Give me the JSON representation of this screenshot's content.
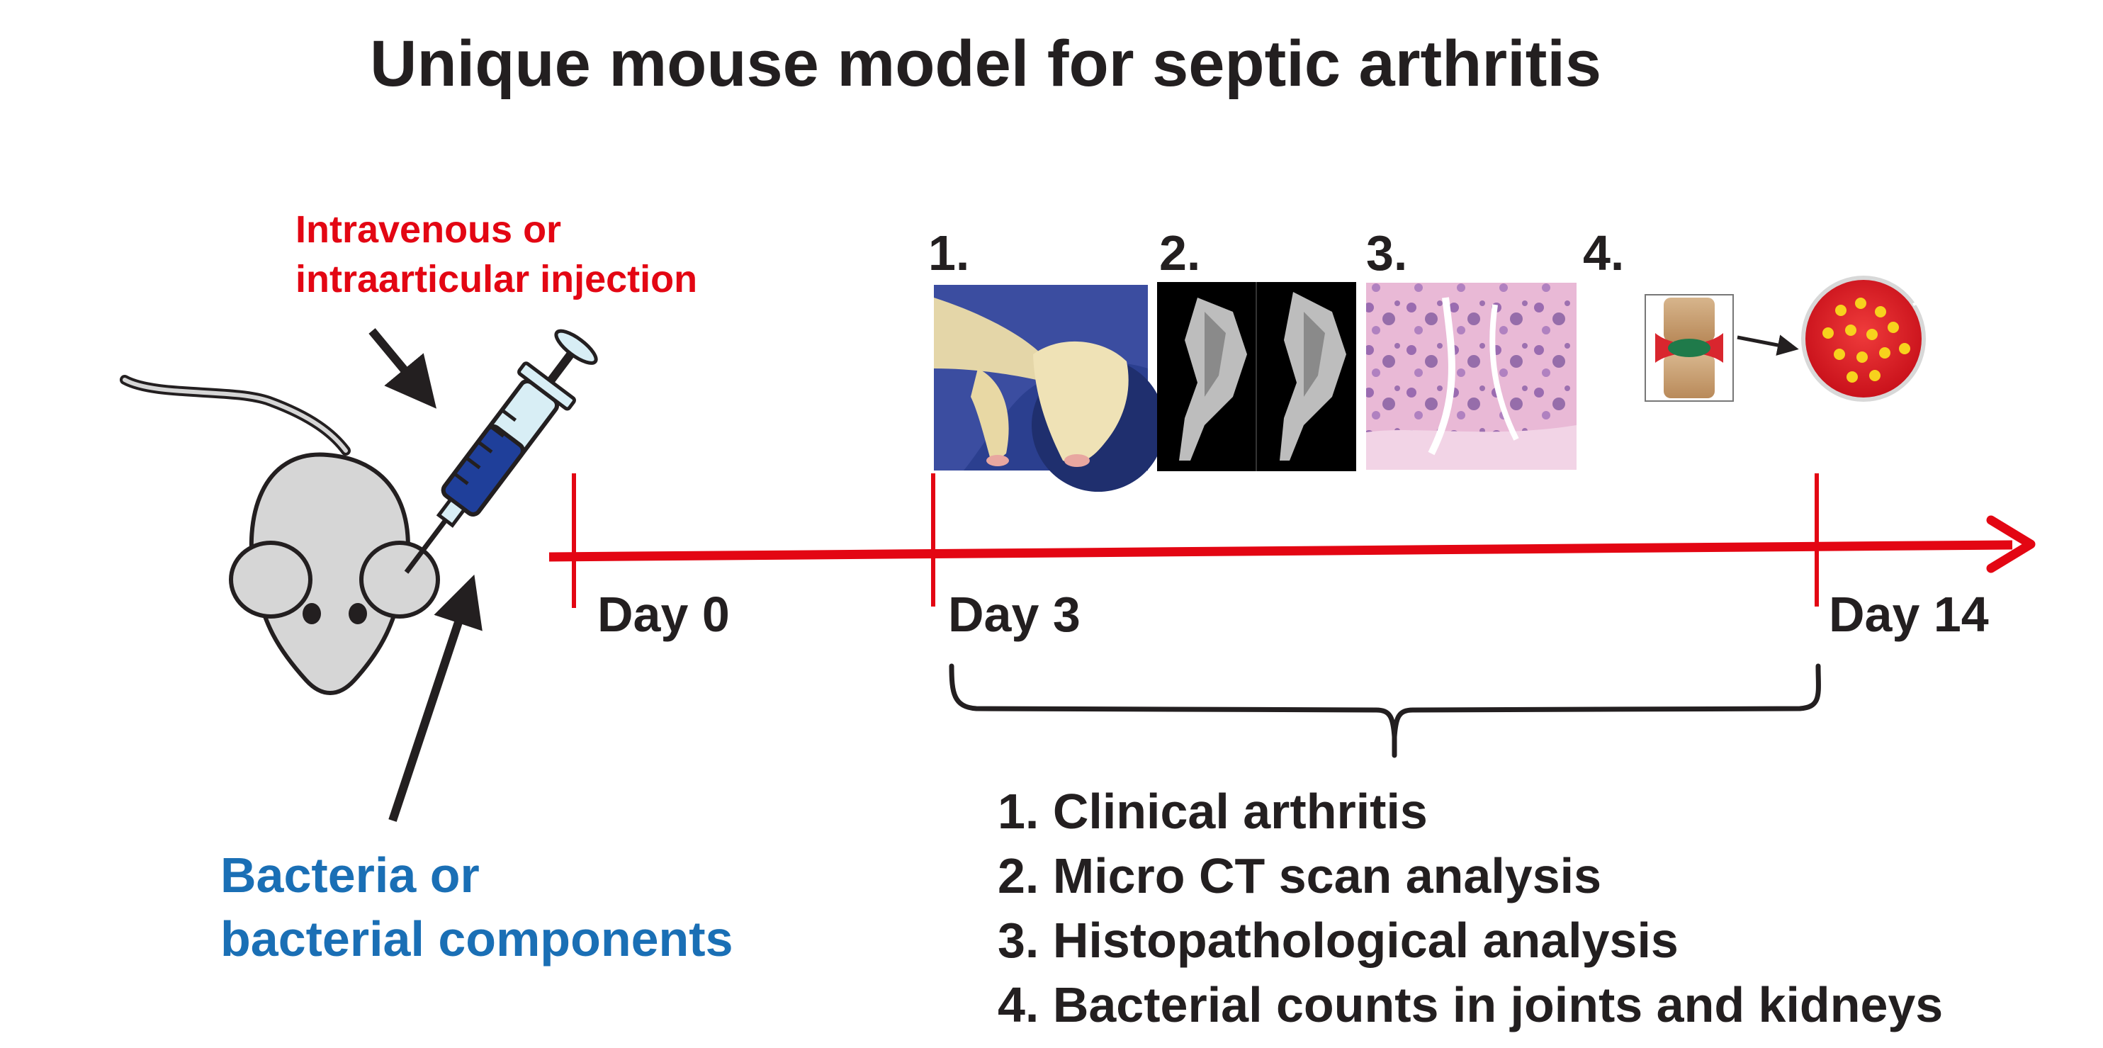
{
  "title": "Unique mouse model for septic arthritis",
  "injection": {
    "line1": "Intravenous or",
    "line2": "intraarticular injection"
  },
  "bacteria": {
    "line1": "Bacteria or",
    "line2": "bacterial components"
  },
  "timeline": {
    "day0": "Day 0",
    "day3": "Day 3",
    "day14": "Day 14"
  },
  "panels": {
    "p1": "1.",
    "p2": "2.",
    "p3": "3.",
    "p4": "4."
  },
  "outcomes": [
    "1. Clinical arthritis",
    "2. Micro CT scan analysis",
    "3. Histopathological analysis",
    "4. Bacterial counts in joints and kidneys"
  ],
  "colors": {
    "timeline": "#e30613",
    "injection_text": "#e30613",
    "bacteria_text": "#1a6fb5",
    "text": "#231f20",
    "mouse_body": "#d6d6d6",
    "syringe_liquid": "#1f3f9a"
  },
  "icons": [
    "mouse-icon",
    "syringe-icon",
    "arrow-icon",
    "paw-photo",
    "ct-scan-image",
    "histology-image",
    "joint-icon",
    "petri-dish-icon"
  ]
}
